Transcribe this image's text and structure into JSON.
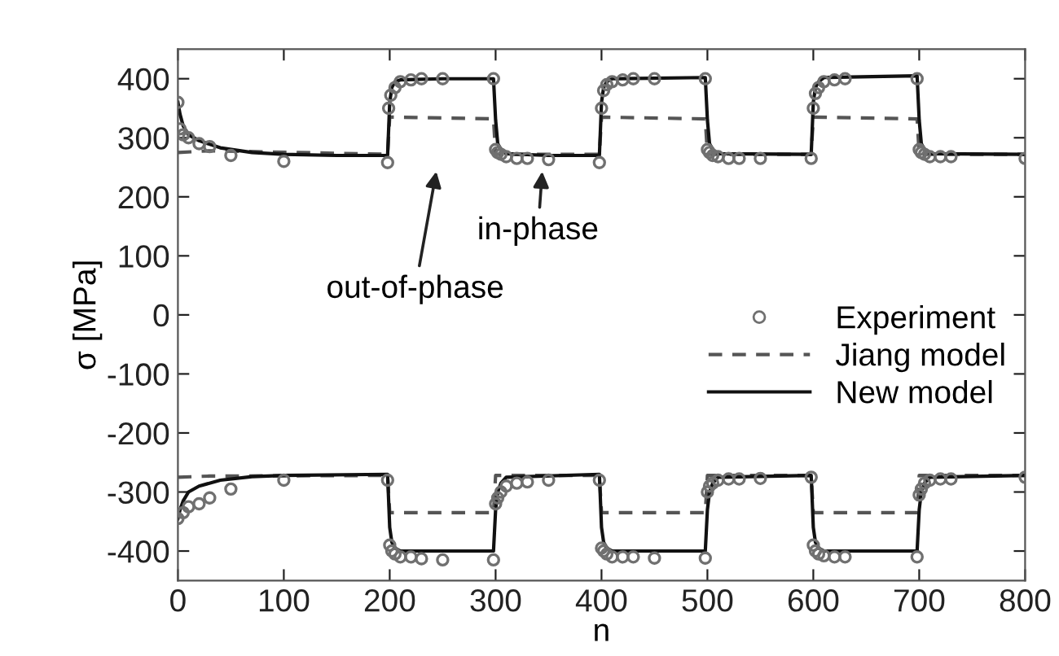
{
  "chart_data": {
    "type": "line",
    "xlabel": "n",
    "ylabel": "σ [MPa]",
    "xlim": [
      0,
      800
    ],
    "ylim": [
      -450,
      450
    ],
    "xticks": [
      0,
      100,
      200,
      300,
      400,
      500,
      600,
      700,
      800
    ],
    "yticks": [
      -400,
      -300,
      -200,
      -100,
      0,
      100,
      200,
      300,
      400
    ],
    "grid": false,
    "legend": "right",
    "annotations": [
      "out-of-phase",
      "in-phase"
    ],
    "series": [
      {
        "name": "Experiment",
        "type": "scatter",
        "marker": "circle",
        "color": "#707070",
        "x": [
          0,
          2,
          5,
          10,
          20,
          30,
          50,
          100,
          198,
          199,
          201,
          205,
          210,
          220,
          230,
          250,
          298,
          300,
          302,
          305,
          310,
          320,
          330,
          350,
          398,
          400,
          402,
          405,
          410,
          420,
          430,
          450,
          498,
          500,
          502,
          505,
          510,
          520,
          530,
          550,
          598,
          600,
          602,
          605,
          610,
          620,
          630,
          698,
          700,
          702,
          705,
          710,
          720,
          730,
          800,
          0,
          5,
          10,
          20,
          30,
          50,
          100,
          198,
          200,
          202,
          205,
          210,
          220,
          230,
          250,
          298,
          300,
          302,
          305,
          310,
          320,
          330,
          350,
          398,
          400,
          402,
          405,
          410,
          420,
          430,
          450,
          498,
          500,
          502,
          505,
          510,
          520,
          530,
          550,
          598,
          600,
          602,
          605,
          610,
          620,
          630,
          698,
          700,
          702,
          705,
          710,
          720,
          730,
          800
        ],
        "values": [
          360,
          315,
          305,
          300,
          290,
          285,
          270,
          260,
          258,
          350,
          372,
          385,
          395,
          398,
          400,
          400,
          400,
          280,
          275,
          272,
          268,
          265,
          265,
          263,
          258,
          350,
          380,
          390,
          395,
          398,
          400,
          400,
          400,
          280,
          275,
          270,
          268,
          265,
          265,
          265,
          265,
          350,
          375,
          385,
          395,
          398,
          400,
          400,
          280,
          275,
          272,
          268,
          268,
          268,
          265,
          -345,
          -335,
          -325,
          -320,
          -310,
          -295,
          -280,
          -280,
          -390,
          -400,
          -405,
          -410,
          -410,
          -413,
          -415,
          -415,
          -320,
          -310,
          -300,
          -290,
          -285,
          -283,
          -280,
          -280,
          -395,
          -400,
          -405,
          -410,
          -410,
          -410,
          -412,
          -412,
          -300,
          -290,
          -285,
          -280,
          -278,
          -278,
          -277,
          -275,
          -390,
          -400,
          -405,
          -408,
          -410,
          -410,
          -410,
          -305,
          -295,
          -285,
          -280,
          -278,
          -278,
          -275
        ]
      },
      {
        "name": "Jiang model",
        "line_style": "dashed",
        "color": "#555555",
        "x": [
          0,
          30,
          198,
          200,
          298,
          300,
          398,
          400,
          498,
          500,
          598,
          600,
          698,
          700,
          800
        ],
        "values": [
          275,
          278,
          272,
          335,
          332,
          272,
          272,
          335,
          332,
          272,
          272,
          335,
          332,
          272,
          272
        ]
      },
      {
        "line_style": "dashed",
        "color": "#555555",
        "x": [
          0,
          30,
          198,
          200,
          298,
          300,
          398,
          400,
          498,
          500,
          598,
          600,
          698,
          700,
          800
        ],
        "values": [
          -275,
          -273,
          -272,
          -335,
          -335,
          -272,
          -272,
          -335,
          -335,
          -272,
          -272,
          -335,
          -335,
          -272,
          -272
        ]
      },
      {
        "name": "New model",
        "line_style": "solid",
        "color": "#111111",
        "x": [
          0,
          2,
          5,
          10,
          20,
          40,
          70,
          100,
          150,
          198,
          200,
          202,
          205,
          210,
          250,
          298,
          300,
          302,
          305,
          310,
          350,
          398,
          400,
          402,
          405,
          410,
          498,
          500,
          502,
          505,
          510,
          598,
          600,
          602,
          605,
          610,
          698,
          700,
          702,
          705,
          710,
          800
        ],
        "values": [
          360,
          340,
          320,
          305,
          295,
          283,
          275,
          272,
          270,
          270,
          360,
          385,
          395,
          398,
          400,
          400,
          330,
          290,
          280,
          273,
          270,
          270,
          360,
          385,
          395,
          400,
          402,
          330,
          290,
          280,
          273,
          272,
          360,
          385,
          395,
          402,
          405,
          330,
          290,
          280,
          273,
          272
        ]
      },
      {
        "line_style": "solid",
        "color": "#111111",
        "x": [
          0,
          2,
          5,
          10,
          20,
          40,
          70,
          100,
          198,
          200,
          202,
          205,
          210,
          298,
          300,
          302,
          305,
          310,
          398,
          400,
          402,
          405,
          410,
          498,
          500,
          502,
          505,
          510,
          598,
          600,
          602,
          605,
          610,
          698,
          700,
          702,
          705,
          710,
          800
        ],
        "values": [
          -345,
          -330,
          -315,
          -300,
          -290,
          -280,
          -274,
          -272,
          -270,
          -360,
          -385,
          -395,
          -400,
          -400,
          -330,
          -300,
          -285,
          -275,
          -270,
          -360,
          -385,
          -395,
          -400,
          -400,
          -330,
          -300,
          -285,
          -275,
          -272,
          -360,
          -385,
          -395,
          -400,
          -400,
          -330,
          -300,
          -285,
          -275,
          -272
        ]
      }
    ]
  }
}
